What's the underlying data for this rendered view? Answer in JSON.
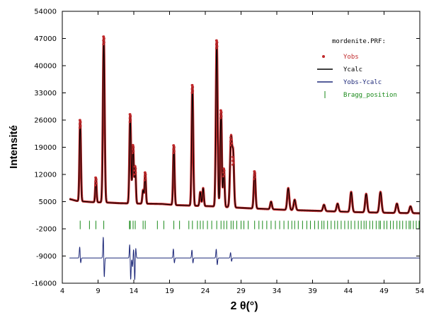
{
  "chart_data": {
    "type": "line",
    "xlabel": "2 θ(°)",
    "ylabel": "Intensité",
    "xlim": [
      4,
      54
    ],
    "ylim": [
      -16000,
      54000
    ],
    "x_ticks": [
      4,
      9,
      14,
      19,
      24,
      29,
      34,
      39,
      44,
      49,
      54
    ],
    "y_ticks": [
      54000,
      47000,
      40000,
      33000,
      26000,
      19000,
      12000,
      5000,
      -2000,
      -9000,
      -16000
    ],
    "legend": {
      "title": "mordenite.PRF:",
      "placement": "top-right",
      "entries": [
        {
          "label": "Yobs",
          "color": "#c0292b",
          "marker": "dot"
        },
        {
          "label": "Ycalc",
          "color": "#000000",
          "marker": "line"
        },
        {
          "label": "Yobs-Ycalc",
          "color": "#1f2a7a",
          "marker": "line"
        },
        {
          "label": "Bragg_position",
          "color": "#1a8a1a",
          "marker": "tick"
        }
      ]
    },
    "series": [
      {
        "name": "Yobs",
        "color": "#c0292b",
        "background": [
          [
            5,
            5700
          ],
          [
            6,
            5200
          ],
          [
            8,
            4900
          ],
          [
            10,
            4800
          ],
          [
            12,
            4600
          ],
          [
            15,
            4500
          ],
          [
            18,
            4400
          ],
          [
            20,
            4100
          ],
          [
            25,
            3800
          ],
          [
            30,
            3300
          ],
          [
            35,
            2900
          ],
          [
            40,
            2600
          ],
          [
            45,
            2300
          ],
          [
            50,
            2100
          ],
          [
            54,
            2000
          ]
        ],
        "peaks": [
          [
            6.5,
            26000,
            0.1
          ],
          [
            8.7,
            11200,
            0.09
          ],
          [
            9.8,
            47500,
            0.12
          ],
          [
            13.5,
            27500,
            0.11
          ],
          [
            13.9,
            19500,
            0.1
          ],
          [
            14.2,
            14000,
            0.09
          ],
          [
            15.3,
            8000,
            0.1
          ],
          [
            15.6,
            12500,
            0.09
          ],
          [
            19.6,
            19500,
            0.1
          ],
          [
            22.2,
            35000,
            0.11
          ],
          [
            23.3,
            7500,
            0.1
          ],
          [
            23.7,
            8500,
            0.1
          ],
          [
            25.6,
            46500,
            0.12
          ],
          [
            26.2,
            28500,
            0.11
          ],
          [
            26.6,
            13500,
            0.1
          ],
          [
            27.6,
            21500,
            0.14
          ],
          [
            27.9,
            16500,
            0.12
          ],
          [
            30.9,
            12800,
            0.12
          ],
          [
            33.2,
            5000,
            0.12
          ],
          [
            35.6,
            8500,
            0.14
          ],
          [
            36.5,
            5500,
            0.14
          ],
          [
            40.6,
            4200,
            0.14
          ],
          [
            42.5,
            4500,
            0.14
          ],
          [
            44.4,
            7500,
            0.14
          ],
          [
            46.5,
            7000,
            0.14
          ],
          [
            48.5,
            7500,
            0.15
          ],
          [
            50.8,
            4500,
            0.15
          ],
          [
            52.7,
            3800,
            0.15
          ]
        ]
      },
      {
        "name": "Ycalc",
        "color": "#000000"
      },
      {
        "name": "Yobs-Ycalc",
        "color": "#1f2a7a",
        "offset": -9500,
        "features": [
          [
            6.5,
            3000,
            -1500
          ],
          [
            9.8,
            6000,
            -5500
          ],
          [
            13.5,
            4000,
            -6000
          ],
          [
            13.9,
            -2500,
            2500
          ],
          [
            14.2,
            -6000,
            3000
          ],
          [
            19.6,
            2500,
            -1500
          ],
          [
            22.2,
            2200,
            -1500
          ],
          [
            25.6,
            2500,
            -2000
          ],
          [
            27.6,
            1500,
            -1000
          ]
        ]
      },
      {
        "name": "Bragg_position",
        "color": "#1a8a1a",
        "y": -1000,
        "positions": [
          6.5,
          7.8,
          8.7,
          9.8,
          13.4,
          13.5,
          13.9,
          14.2,
          15.3,
          15.6,
          17.3,
          18.2,
          19.6,
          20.4,
          21.7,
          22.2,
          22.9,
          23.3,
          23.7,
          24.3,
          24.9,
          25.6,
          26.2,
          26.6,
          27.0,
          27.6,
          27.9,
          28.4,
          29.0,
          29.4,
          30.0,
          30.9,
          31.5,
          32.0,
          32.6,
          33.2,
          33.8,
          34.4,
          35.0,
          35.6,
          36.1,
          36.5,
          37.0,
          37.6,
          38.2,
          38.7,
          39.3,
          39.8,
          40.3,
          40.6,
          41.1,
          41.6,
          42.1,
          42.5,
          43.0,
          43.5,
          44.0,
          44.4,
          44.9,
          45.4,
          45.8,
          46.2,
          46.5,
          47.0,
          47.4,
          47.9,
          48.3,
          48.5,
          49.0,
          49.4,
          49.9,
          50.3,
          50.8,
          51.2,
          51.6,
          52.1,
          52.5,
          52.7,
          53.1,
          53.5,
          53.9
        ]
      }
    ]
  }
}
